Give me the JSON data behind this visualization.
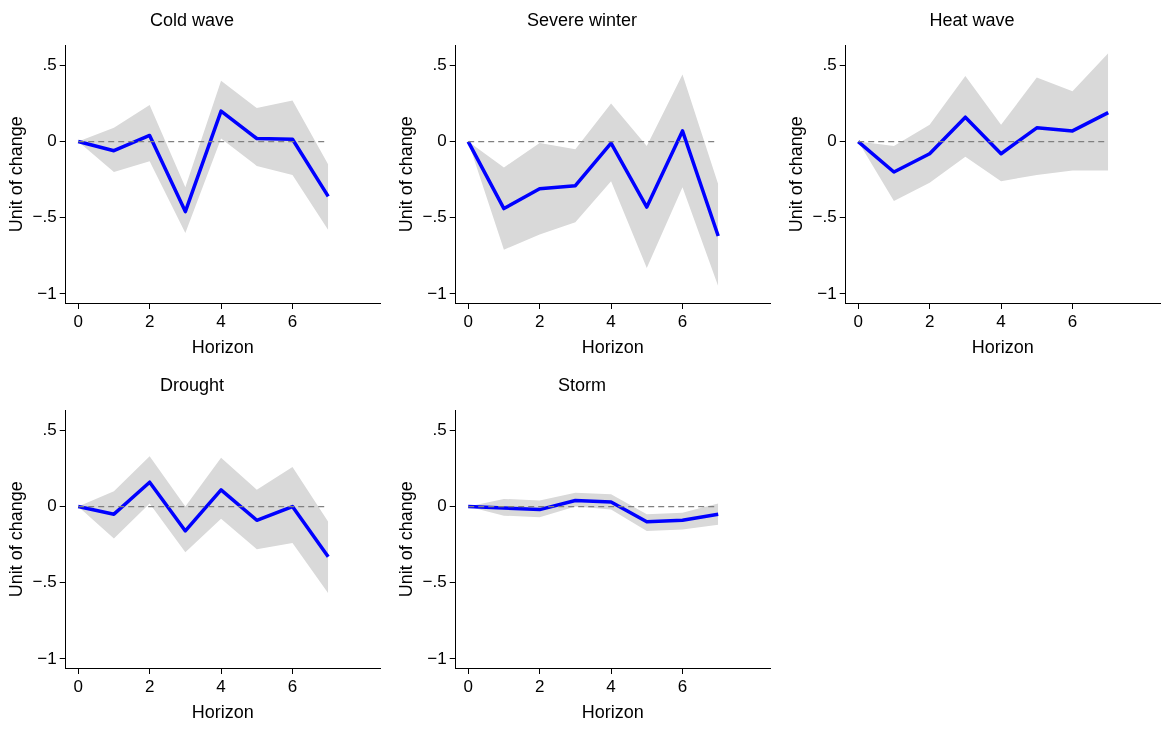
{
  "chart_data": [
    {
      "type": "line",
      "title": "Cold wave",
      "xlabel": "Horizon",
      "ylabel": "Unit of change",
      "x": [
        0,
        1,
        2,
        3,
        4,
        5,
        6,
        7
      ],
      "xlim": [
        -0.35,
        8.45
      ],
      "xticks": [
        0,
        2,
        4,
        6
      ],
      "ylim": [
        -1.06,
        0.63
      ],
      "yticks": [
        {
          "value": -1,
          "label": "−1"
        },
        {
          "value": -0.5,
          "label": "−.5"
        },
        {
          "value": 0,
          "label": "0"
        },
        {
          "value": 0.5,
          "label": ".5"
        }
      ],
      "grid": false,
      "legend": false,
      "line_style": "solid",
      "marker": "none",
      "ref_lines": [
        {
          "axis": "y",
          "value": 0,
          "color": "#808080",
          "line_style": "dashed"
        }
      ],
      "series": [
        {
          "color": "#0000ff",
          "values": [
            0,
            -0.06,
            0.04,
            -0.46,
            0.2,
            0.02,
            0.015,
            -0.36
          ],
          "lower": [
            0,
            -0.2,
            -0.13,
            -0.6,
            0.02,
            -0.16,
            -0.22,
            -0.58
          ],
          "upper": [
            0,
            0.09,
            0.24,
            -0.3,
            0.4,
            0.22,
            0.27,
            -0.15
          ]
        }
      ]
    },
    {
      "type": "line",
      "title": "Severe winter",
      "xlabel": "Horizon",
      "ylabel": "Unit of change",
      "x": [
        0,
        1,
        2,
        3,
        4,
        5,
        6,
        7
      ],
      "xlim": [
        -0.35,
        8.45
      ],
      "xticks": [
        0,
        2,
        4,
        6
      ],
      "ylim": [
        -1.06,
        0.63
      ],
      "yticks": [
        {
          "value": -1,
          "label": "−1"
        },
        {
          "value": -0.5,
          "label": "−.5"
        },
        {
          "value": 0,
          "label": "0"
        },
        {
          "value": 0.5,
          "label": ".5"
        }
      ],
      "grid": false,
      "legend": false,
      "line_style": "solid",
      "marker": "none",
      "ref_lines": [
        {
          "axis": "y",
          "value": 0,
          "color": "#808080",
          "line_style": "dashed"
        }
      ],
      "series": [
        {
          "color": "#0000ff",
          "values": [
            0,
            -0.44,
            -0.31,
            -0.29,
            -0.01,
            -0.43,
            0.07,
            -0.62
          ],
          "lower": [
            0,
            -0.71,
            -0.61,
            -0.53,
            -0.26,
            -0.83,
            -0.3,
            -0.95
          ],
          "upper": [
            0,
            -0.17,
            -0.01,
            -0.05,
            0.25,
            -0.03,
            0.44,
            -0.28
          ]
        }
      ]
    },
    {
      "type": "line",
      "title": "Heat wave",
      "xlabel": "Horizon",
      "ylabel": "Unit of change",
      "x": [
        0,
        1,
        2,
        3,
        4,
        5,
        6,
        7
      ],
      "xlim": [
        -0.35,
        8.45
      ],
      "xticks": [
        0,
        2,
        4,
        6
      ],
      "ylim": [
        -1.06,
        0.63
      ],
      "yticks": [
        {
          "value": -1,
          "label": "−1"
        },
        {
          "value": -0.5,
          "label": "−.5"
        },
        {
          "value": 0,
          "label": "0"
        },
        {
          "value": 0.5,
          "label": ".5"
        }
      ],
      "grid": false,
      "legend": false,
      "line_style": "solid",
      "marker": "none",
      "ref_lines": [
        {
          "axis": "y",
          "value": 0,
          "color": "#808080",
          "line_style": "dashed"
        }
      ],
      "series": [
        {
          "color": "#0000ff",
          "values": [
            0,
            -0.2,
            -0.08,
            0.16,
            -0.08,
            0.09,
            0.07,
            0.19
          ],
          "lower": [
            0,
            -0.39,
            -0.27,
            -0.1,
            -0.26,
            -0.22,
            -0.19,
            -0.19
          ],
          "upper": [
            0,
            -0.03,
            0.11,
            0.43,
            0.11,
            0.42,
            0.33,
            0.58
          ]
        }
      ]
    },
    {
      "type": "line",
      "title": "Drought",
      "xlabel": "Horizon",
      "ylabel": "Unit of change",
      "x": [
        0,
        1,
        2,
        3,
        4,
        5,
        6,
        7
      ],
      "xlim": [
        -0.35,
        8.45
      ],
      "xticks": [
        0,
        2,
        4,
        6
      ],
      "ylim": [
        -1.06,
        0.63
      ],
      "yticks": [
        {
          "value": -1,
          "label": "−1"
        },
        {
          "value": -0.5,
          "label": "−.5"
        },
        {
          "value": 0,
          "label": "0"
        },
        {
          "value": 0.5,
          "label": ".5"
        }
      ],
      "grid": false,
      "legend": false,
      "line_style": "solid",
      "marker": "none",
      "ref_lines": [
        {
          "axis": "y",
          "value": 0,
          "color": "#808080",
          "line_style": "dashed"
        }
      ],
      "series": [
        {
          "color": "#0000ff",
          "values": [
            0,
            -0.05,
            0.16,
            -0.16,
            0.11,
            -0.09,
            0,
            -0.33
          ],
          "lower": [
            0,
            -0.21,
            0.02,
            -0.3,
            -0.08,
            -0.28,
            -0.24,
            -0.57
          ],
          "upper": [
            0,
            0.1,
            0.33,
            0,
            0.32,
            0.11,
            0.26,
            -0.1
          ]
        }
      ]
    },
    {
      "type": "line",
      "title": "Storm",
      "xlabel": "Horizon",
      "ylabel": "Unit of change",
      "x": [
        0,
        1,
        2,
        3,
        4,
        5,
        6,
        7
      ],
      "xlim": [
        -0.35,
        8.45
      ],
      "xticks": [
        0,
        2,
        4,
        6
      ],
      "ylim": [
        -1.06,
        0.63
      ],
      "yticks": [
        {
          "value": -1,
          "label": "−1"
        },
        {
          "value": -0.5,
          "label": "−.5"
        },
        {
          "value": 0,
          "label": "0"
        },
        {
          "value": 0.5,
          "label": ".5"
        }
      ],
      "grid": false,
      "legend": false,
      "line_style": "solid",
      "marker": "none",
      "ref_lines": [
        {
          "axis": "y",
          "value": 0,
          "color": "#808080",
          "line_style": "dashed"
        }
      ],
      "series": [
        {
          "color": "#0000ff",
          "values": [
            0,
            -0.01,
            -0.02,
            0.04,
            0.03,
            -0.1,
            -0.09,
            -0.05
          ],
          "lower": [
            0,
            -0.06,
            -0.07,
            0,
            -0.02,
            -0.16,
            -0.15,
            -0.12
          ],
          "upper": [
            0,
            0.05,
            0.04,
            0.09,
            0.08,
            -0.05,
            -0.04,
            0.02
          ]
        }
      ]
    }
  ]
}
